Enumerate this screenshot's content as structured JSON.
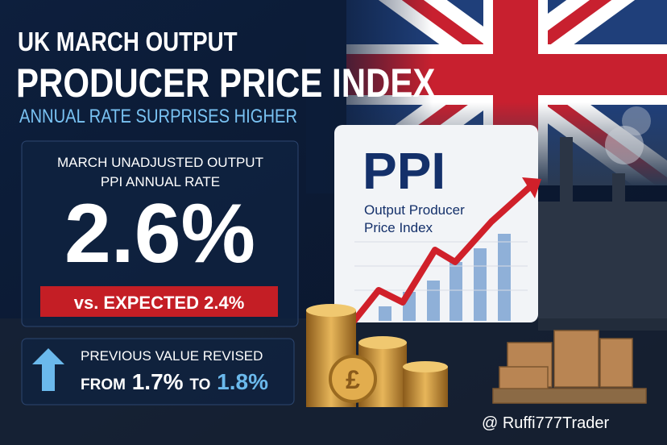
{
  "header": {
    "title_line1": "UK MARCH OUTPUT",
    "title_line2": "PRODUCER PRICE INDEX",
    "subtitle": "ANNUAL RATE SURPRISES HIGHER"
  },
  "main_panel": {
    "label": "MARCH UNADJUSTED OUTPUT PPI ANNUAL RATE",
    "value": "2.6%",
    "expected": "vs. EXPECTED 2.4%"
  },
  "revision_panel": {
    "line1": "PREVIOUS VALUE REVISED",
    "from_word": "FROM",
    "from_value": "1.7%",
    "to_word": "TO",
    "to_value": "1.8%"
  },
  "card": {
    "title": "PPI",
    "subtitle": "Output Producer Price Index"
  },
  "watermark": "@ Ruffi777Trader"
}
